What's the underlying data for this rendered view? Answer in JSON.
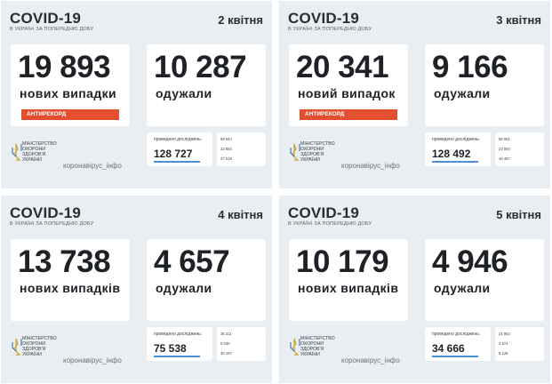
{
  "panels": [
    {
      "title": "COVID-19",
      "subtitle": "В Україні за попередню добу",
      "date": "2 квітня",
      "cases_value": "19 893",
      "cases_label": "нових випадки",
      "badge": "АНТИРЕКОРД",
      "recovered_value": "10 287",
      "recovered_label": "одужали",
      "tests_label": "проведено досліджень:",
      "tests_value": "128 727",
      "stats": [
        "58 944",
        "22 564",
        "47 219"
      ],
      "ministry": "Міністерство охорони здоров'я України",
      "site": "коронавірус_інфо"
    },
    {
      "title": "COVID-19",
      "subtitle": "В Україні за попередню добу",
      "date": "3 квітня",
      "cases_value": "20 341",
      "cases_label": "новий випадок",
      "badge": "АНТИРЕКОРД",
      "recovered_value": "9 166",
      "recovered_label": "одужали",
      "tests_label": "проведено досліджень:",
      "tests_value": "128 492",
      "stats": [
        "58 951",
        "23 084",
        "46 457"
      ],
      "ministry": "Міністерство охорони здоров'я України",
      "site": "коронавірус_інфо"
    },
    {
      "title": "COVID-19",
      "subtitle": "В Україні за попередню добу",
      "date": "4 квітня",
      "cases_value": "13 738",
      "cases_label": "нових випадків",
      "badge": "",
      "recovered_value": "4 657",
      "recovered_label": "одужали",
      "tests_label": "проведено досліджень:",
      "tests_value": "75 538",
      "stats": [
        "36 311",
        "9 030",
        "30 197"
      ],
      "ministry": "Міністерство охорони здоров'я України",
      "site": "коронавірус_інфо"
    },
    {
      "title": "COVID-19",
      "subtitle": "В Україні за попередню добу",
      "date": "5 квітня",
      "cases_value": "10 179",
      "cases_label": "нових випадків",
      "badge": "",
      "recovered_value": "4 946",
      "recovered_label": "одужали",
      "tests_label": "проведено досліджень:",
      "tests_value": "34 666",
      "stats": [
        "21 963",
        "4 574",
        "8 129"
      ],
      "ministry": "Міністерство охорони здоров'я України",
      "site": "коронавірус_інфо"
    }
  ],
  "colors": {
    "background": "#e8eef2",
    "card": "#ffffff",
    "badge": "#e4502f",
    "accent_bar": "#4a90d9",
    "trident": "#c9a227"
  }
}
